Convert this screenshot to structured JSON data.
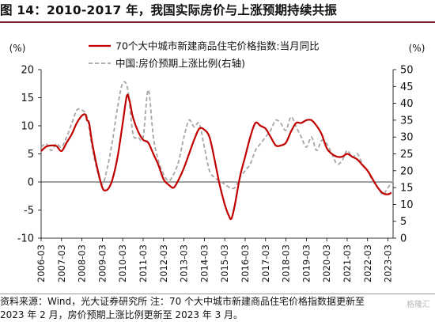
{
  "title": "图 14：2010-2017 年，我国实际房价与上涨预期持续共振",
  "source_line1": "资料来源：Wind，光大证券研究所  注：70 个大中城市新建商品住宅价格指数据更新至",
  "source_line2": "2023 年 2 月，房价预期上涨比例更新至 2023 年 3 月。",
  "watermark": "格隆汇",
  "colors": {
    "primary": "#c00000",
    "secondary": "#a6a6a6",
    "accent": "#7d1f2b"
  },
  "chart_data": {
    "type": "line",
    "x_ticks": [
      "2006-03",
      "2007-03",
      "2008-03",
      "2009-03",
      "2010-03",
      "2011-03",
      "2012-03",
      "2013-03",
      "2014-03",
      "2015-03",
      "2016-03",
      "2017-03",
      "2018-03",
      "2019-03",
      "2020-03",
      "2021-03",
      "2022-03",
      "2023-03"
    ],
    "x_range": [
      2006.0,
      2023.25
    ],
    "left_axis": {
      "unit": "(%)",
      "range": [
        -10,
        20
      ],
      "ticks": [
        -10,
        -5,
        0,
        5,
        10,
        15,
        20
      ]
    },
    "right_axis": {
      "unit": "(%)",
      "range": [
        0,
        50
      ],
      "ticks": [
        0,
        5,
        10,
        15,
        20,
        25,
        30,
        35,
        40,
        45,
        50
      ]
    },
    "series": [
      {
        "name": "70个大中城市新建商品住宅价格指数:当月同比",
        "axis": "left",
        "color": "#c00000",
        "style": "solid",
        "x": [
          2006.0,
          2006.25,
          2006.5,
          2006.75,
          2007.0,
          2007.25,
          2007.5,
          2007.75,
          2008.0,
          2008.17,
          2008.25,
          2008.35,
          2008.5,
          2008.75,
          2009.0,
          2009.17,
          2009.33,
          2009.5,
          2009.75,
          2010.0,
          2010.2,
          2010.33,
          2010.5,
          2010.75,
          2011.0,
          2011.25,
          2011.5,
          2011.75,
          2012.0,
          2012.25,
          2012.5,
          2012.75,
          2013.0,
          2013.25,
          2013.5,
          2013.75,
          2014.0,
          2014.25,
          2014.5,
          2014.75,
          2015.0,
          2015.2,
          2015.33,
          2015.5,
          2015.75,
          2016.0,
          2016.25,
          2016.5,
          2016.75,
          2017.0,
          2017.25,
          2017.5,
          2017.75,
          2018.0,
          2018.25,
          2018.5,
          2018.75,
          2019.0,
          2019.25,
          2019.5,
          2019.75,
          2020.0,
          2020.25,
          2020.5,
          2020.75,
          2021.0,
          2021.25,
          2021.5,
          2021.75,
          2022.0,
          2022.25,
          2022.5,
          2022.75,
          2023.0,
          2023.17
        ],
        "values": [
          5.5,
          6.3,
          6.5,
          6.4,
          5.5,
          7.0,
          8.5,
          10.5,
          11.8,
          12.0,
          11.0,
          10.5,
          7.0,
          2.5,
          -1.0,
          -1.5,
          -1.0,
          0.5,
          4.5,
          10.5,
          15.3,
          14.5,
          11.5,
          9.0,
          7.5,
          7.0,
          5.0,
          3.0,
          0.5,
          -0.5,
          -1.0,
          0.5,
          2.5,
          5.0,
          7.5,
          9.5,
          9.3,
          8.0,
          4.0,
          -0.5,
          -4.0,
          -6.0,
          -6.5,
          -4.0,
          1.0,
          4.5,
          8.0,
          10.5,
          10.0,
          9.5,
          8.0,
          6.5,
          6.5,
          7.0,
          9.0,
          10.5,
          10.5,
          11.0,
          11.0,
          10.0,
          8.5,
          6.0,
          5.0,
          4.5,
          4.5,
          5.0,
          4.5,
          4.0,
          3.0,
          2.0,
          0.5,
          -1.0,
          -2.0,
          -2.2,
          -1.9
        ]
      },
      {
        "name": "中国:房价预期上涨比例(右轴)",
        "axis": "right",
        "color": "#a6a6a6",
        "style": "dashed",
        "x": [
          2006.0,
          2006.25,
          2006.5,
          2006.75,
          2007.0,
          2007.25,
          2007.5,
          2007.75,
          2008.0,
          2008.25,
          2008.5,
          2008.75,
          2009.0,
          2009.25,
          2009.5,
          2009.75,
          2010.0,
          2010.25,
          2010.5,
          2010.75,
          2011.0,
          2011.25,
          2011.5,
          2011.75,
          2012.0,
          2012.25,
          2012.5,
          2012.75,
          2013.0,
          2013.25,
          2013.5,
          2013.75,
          2014.0,
          2014.25,
          2014.5,
          2014.75,
          2015.0,
          2015.25,
          2015.5,
          2015.75,
          2016.0,
          2016.25,
          2016.5,
          2016.75,
          2017.0,
          2017.25,
          2017.5,
          2017.75,
          2018.0,
          2018.25,
          2018.5,
          2018.75,
          2019.0,
          2019.25,
          2019.5,
          2019.75,
          2020.0,
          2020.25,
          2020.5,
          2020.75,
          2021.0,
          2021.25,
          2021.5,
          2021.75,
          2022.0,
          2022.25,
          2022.5,
          2022.75,
          2023.0,
          2023.25
        ],
        "values": [
          27,
          28,
          26,
          28,
          27,
          30,
          34,
          38,
          38,
          36,
          27,
          20,
          16,
          21,
          29,
          39,
          46,
          44,
          31,
          30,
          30,
          44,
          30,
          23,
          19,
          17,
          19,
          23,
          30,
          35,
          33,
          34,
          27,
          20,
          18,
          17,
          16,
          15,
          15,
          18,
          20,
          22,
          26,
          28,
          30,
          32,
          35,
          34,
          32,
          36,
          33,
          30,
          27,
          30,
          26,
          29,
          28,
          25,
          22,
          23,
          26,
          24,
          25,
          22,
          20,
          17,
          15,
          13,
          15,
          17
        ]
      }
    ]
  }
}
